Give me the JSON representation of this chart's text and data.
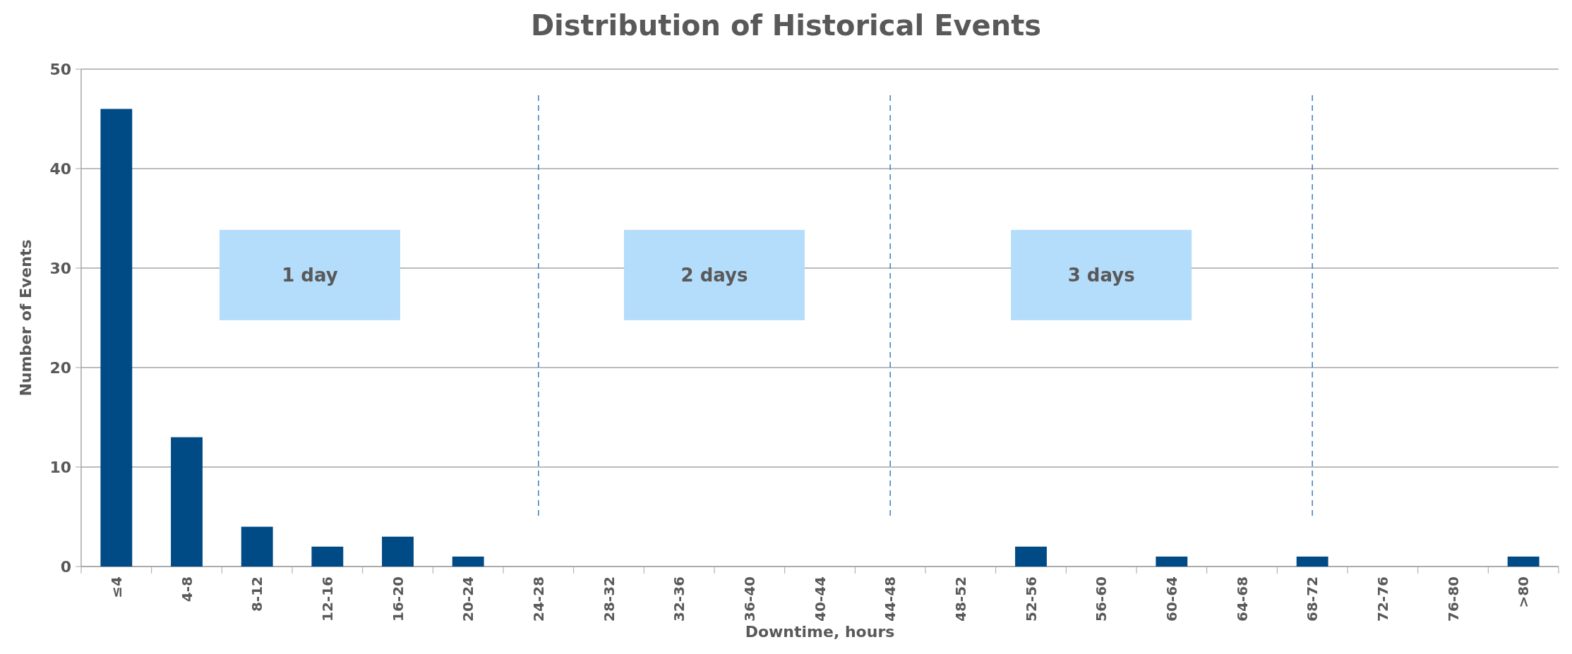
{
  "chart_data": {
    "type": "bar",
    "title": "Distribution of Historical Events",
    "xlabel": "Downtime, hours",
    "ylabel": "Number of Events",
    "categories": [
      "≤4",
      "4-8",
      "8-12",
      "12-16",
      "16-20",
      "20-24",
      "24-28",
      "28-32",
      "32-36",
      "36-40",
      "40-44",
      "44-48",
      "48-52",
      "52-56",
      "56-60",
      "60-64",
      "64-68",
      "68-72",
      "72-76",
      "76-80",
      ">80"
    ],
    "values": [
      46,
      13,
      4,
      2,
      3,
      1,
      0,
      0,
      0,
      0,
      0,
      0,
      0,
      2,
      0,
      1,
      0,
      1,
      0,
      0,
      1
    ],
    "color": "#004a86",
    "ylim": [
      0,
      50
    ],
    "yticks": [
      0,
      10,
      20,
      30,
      40,
      50
    ],
    "grid": "y",
    "ref_lines": [
      {
        "axis": "x",
        "value": "24-28",
        "color": "#3b7dbf",
        "line_style": "dashed"
      },
      {
        "axis": "x",
        "value": "44-48",
        "color": "#3b7dbf",
        "line_style": "dashed"
      },
      {
        "axis": "x",
        "value": "68-72",
        "color": "#3b7dbf",
        "line_style": "dashed"
      }
    ],
    "annotations": [
      "1 day",
      "2 days",
      "3 days"
    ]
  }
}
